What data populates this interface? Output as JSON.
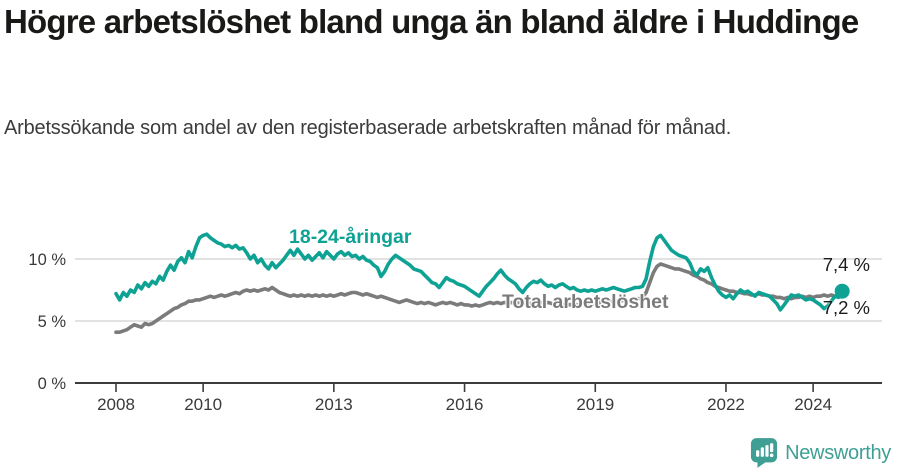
{
  "header": {
    "title": "Högre arbetslöshet bland unga än bland äldre i Huddinge",
    "subtitle": "Arbetssökande som andel av den registerbaserade arbetskraften månad för månad."
  },
  "chart_data": {
    "type": "line",
    "title": "Högre arbetslöshet bland unga än bland äldre i Huddinge",
    "subtitle": "Arbetssökande som andel av den registerbaserade arbetskraften månad för månad.",
    "unit": "%",
    "grid": "horizontal",
    "legend_position": "inline-labels",
    "x_axis": {
      "start": 2008,
      "end": 2024.67,
      "ticks": [
        2008,
        2010,
        2013,
        2016,
        2019,
        2022,
        2024
      ],
      "tick_format": "year"
    },
    "y_axis": {
      "range": [
        0,
        13.5
      ],
      "ticks": [
        {
          "value": 0,
          "label": "0 %"
        },
        {
          "value": 5,
          "label": "5 %"
        },
        {
          "value": 10,
          "label": "10 %"
        }
      ]
    },
    "series": [
      {
        "name": "18-24-åringar",
        "color": "#0ea294",
        "end_label": "7,4 %",
        "end_value": 7.4,
        "end_dot": true,
        "x_start": 2008.0,
        "x_step_years": 0.083333,
        "values": [
          7.2,
          6.7,
          7.3,
          7.0,
          7.5,
          7.3,
          7.9,
          7.6,
          8.1,
          7.8,
          8.2,
          8.0,
          8.6,
          8.3,
          9.0,
          9.5,
          9.1,
          9.8,
          10.1,
          9.7,
          10.6,
          10.1,
          11.0,
          11.7,
          11.9,
          12.0,
          11.7,
          11.5,
          11.3,
          11.2,
          11.0,
          11.1,
          10.9,
          11.1,
          10.8,
          10.9,
          10.5,
          10.0,
          10.3,
          9.7,
          10.0,
          9.5,
          9.2,
          9.7,
          9.3,
          9.6,
          9.9,
          10.3,
          10.7,
          10.3,
          10.8,
          10.4,
          10.0,
          10.3,
          9.9,
          10.2,
          10.5,
          10.1,
          10.6,
          10.3,
          10.0,
          10.4,
          10.6,
          10.3,
          10.5,
          10.2,
          10.3,
          10.0,
          10.2,
          9.9,
          9.8,
          9.5,
          9.3,
          8.6,
          9.0,
          9.6,
          10.0,
          10.3,
          10.1,
          9.9,
          9.7,
          9.5,
          9.2,
          9.1,
          9.0,
          8.7,
          8.4,
          8.1,
          8.0,
          7.7,
          8.1,
          8.5,
          8.3,
          8.2,
          8.0,
          7.9,
          7.8,
          7.6,
          7.4,
          7.2,
          7.0,
          7.4,
          7.8,
          8.1,
          8.4,
          8.8,
          9.1,
          8.7,
          8.4,
          8.2,
          8.0,
          7.6,
          7.3,
          7.7,
          8.0,
          8.2,
          8.1,
          8.3,
          8.0,
          7.8,
          7.9,
          7.7,
          7.9,
          8.0,
          7.8,
          7.6,
          7.7,
          7.5,
          7.4,
          7.5,
          7.4,
          7.5,
          7.4,
          7.5,
          7.6,
          7.5,
          7.6,
          7.7,
          7.6,
          7.5,
          7.4,
          7.5,
          7.6,
          7.7,
          7.7,
          7.8,
          8.4,
          9.8,
          11.0,
          11.7,
          11.9,
          11.5,
          11.1,
          10.7,
          10.5,
          10.3,
          10.2,
          10.1,
          9.7,
          9.0,
          8.7,
          9.2,
          9.0,
          9.3,
          8.5,
          7.9,
          7.4,
          7.1,
          6.9,
          7.1,
          6.8,
          7.2,
          7.5,
          7.3,
          7.4,
          7.2,
          7.0,
          7.3,
          7.2,
          7.1,
          7.0,
          6.7,
          6.4,
          5.9,
          6.3,
          6.7,
          7.1,
          7.0,
          7.1,
          6.9,
          6.7,
          6.8,
          6.7,
          6.5,
          6.3,
          6.0,
          6.2,
          6.6,
          7.0,
          6.9,
          7.4
        ]
      },
      {
        "name": "Total arbetslöshet",
        "color": "#7b7b7b",
        "end_label": "7,2 %",
        "end_value": 7.2,
        "end_dot": false,
        "x_start": 2008.0,
        "x_step_years": 0.083333,
        "values": [
          4.1,
          4.1,
          4.2,
          4.3,
          4.5,
          4.7,
          4.6,
          4.5,
          4.8,
          4.7,
          4.8,
          5.0,
          5.2,
          5.4,
          5.6,
          5.8,
          6.0,
          6.1,
          6.3,
          6.4,
          6.6,
          6.6,
          6.7,
          6.7,
          6.8,
          6.9,
          7.0,
          6.9,
          7.0,
          7.1,
          7.0,
          7.1,
          7.2,
          7.3,
          7.2,
          7.4,
          7.5,
          7.4,
          7.5,
          7.4,
          7.5,
          7.6,
          7.5,
          7.7,
          7.5,
          7.3,
          7.2,
          7.1,
          7.0,
          7.1,
          7.0,
          7.1,
          7.0,
          7.1,
          7.0,
          7.1,
          7.0,
          7.1,
          7.0,
          7.1,
          7.0,
          7.1,
          7.2,
          7.1,
          7.2,
          7.3,
          7.3,
          7.2,
          7.1,
          7.2,
          7.1,
          7.0,
          6.9,
          7.0,
          6.9,
          6.8,
          6.7,
          6.6,
          6.5,
          6.6,
          6.7,
          6.6,
          6.5,
          6.4,
          6.5,
          6.4,
          6.5,
          6.4,
          6.3,
          6.4,
          6.5,
          6.4,
          6.5,
          6.4,
          6.3,
          6.4,
          6.3,
          6.3,
          6.2,
          6.3,
          6.2,
          6.3,
          6.4,
          6.5,
          6.4,
          6.5,
          6.4,
          6.5,
          6.4,
          6.5,
          6.4,
          6.5,
          6.4,
          6.5,
          6.4,
          6.5,
          6.4,
          6.5,
          6.4,
          6.5,
          6.4,
          6.3,
          6.4,
          6.3,
          6.4,
          6.3,
          6.4,
          6.3,
          6.4,
          6.3,
          6.4,
          6.4,
          6.4,
          6.5,
          6.4,
          6.5,
          6.6,
          6.5,
          6.6,
          6.6,
          6.7,
          6.6,
          6.7,
          6.8,
          6.8,
          6.9,
          7.3,
          8.1,
          8.9,
          9.4,
          9.6,
          9.5,
          9.4,
          9.3,
          9.2,
          9.2,
          9.1,
          9.0,
          8.9,
          8.7,
          8.6,
          8.4,
          8.3,
          8.1,
          8.0,
          7.8,
          7.7,
          7.6,
          7.5,
          7.4,
          7.4,
          7.3,
          7.3,
          7.2,
          7.2,
          7.1,
          7.1,
          7.2,
          7.1,
          7.1,
          7.0,
          7.0,
          6.9,
          6.9,
          6.8,
          6.9,
          6.8,
          6.9,
          6.9,
          7.0,
          6.9,
          7.0,
          6.9,
          7.0,
          7.0,
          7.1,
          7.0,
          7.1,
          7.0,
          7.1,
          7.2
        ]
      }
    ]
  },
  "footer": {
    "brand": "Newsworthy"
  },
  "colors": {
    "accent_teal": "#0ea294",
    "series_gray": "#7b7b7b",
    "logo_teal": "#3f9f94",
    "grid": "#d8d8d8",
    "axis": "#3c3c3c",
    "tick_text": "#3a3a3a",
    "value_text": "#1c1c1c"
  }
}
